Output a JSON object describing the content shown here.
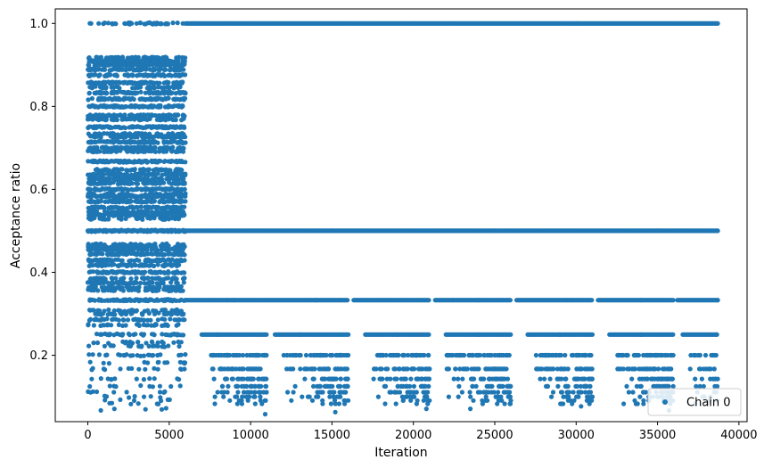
{
  "chart_data": {
    "type": "scatter",
    "title": "",
    "xlabel": "Iteration",
    "ylabel": "Acceptance ratio",
    "xlim": [
      -2000,
      40500
    ],
    "ylim": [
      0.04,
      1.035
    ],
    "xticks": [
      0,
      5000,
      10000,
      15000,
      20000,
      25000,
      30000,
      35000,
      40000
    ],
    "xtick_labels": [
      "0",
      "5000",
      "10000",
      "15000",
      "20000",
      "25000",
      "30000",
      "35000",
      "40000"
    ],
    "yticks": [
      0.2,
      0.4,
      0.6,
      0.8,
      1.0
    ],
    "ytick_labels": [
      "0.2",
      "0.4",
      "0.6",
      "0.8",
      "1.0"
    ],
    "grid": false,
    "legend": {
      "position": "bottom-right",
      "entries": [
        "Chain 0"
      ]
    },
    "series": [
      {
        "name": "Chain 0",
        "color": "#1f77b4",
        "marker": "circle",
        "x_range": [
          0,
          38700
        ],
        "description_levels": {
          "bands": [
            {
              "y": 1.0,
              "x_range": [
                6000,
                38700
              ],
              "continuous": true
            },
            {
              "y": 0.5,
              "x_range": [
                6000,
                38700
              ],
              "continuous": true
            },
            {
              "y": 0.333,
              "x_range": [
                6000,
                38700
              ],
              "gaps": [
                [
                  16000,
                  16300
                ],
                [
                  21000,
                  21300
                ],
                [
                  26000,
                  26300
                ],
                [
                  31000,
                  31300
                ],
                [
                  36000,
                  36200
                ]
              ]
            },
            {
              "y": 0.25,
              "x_range": [
                7000,
                38700
              ],
              "gaps": [
                [
                  11000,
                  11500
                ],
                [
                  16000,
                  17000
                ],
                [
                  21000,
                  22000
                ],
                [
                  26000,
                  27000
                ],
                [
                  31000,
                  32000
                ],
                [
                  36000,
                  36500
                ]
              ]
            }
          ],
          "early_phase_x_range": [
            0,
            6000
          ],
          "early_phase_y_range": [
            0.06,
            0.95
          ]
        },
        "sample_points": [
          [
            200,
            1.0
          ],
          [
            1500,
            1.0
          ],
          [
            3000,
            1.0
          ],
          [
            4500,
            1.0
          ],
          [
            6500,
            1.0
          ],
          [
            10000,
            1.0
          ],
          [
            20000,
            1.0
          ],
          [
            30000,
            1.0
          ],
          [
            38700,
            1.0
          ],
          [
            500,
            0.909
          ],
          [
            2500,
            0.9
          ],
          [
            4000,
            0.909
          ],
          [
            5800,
            0.917
          ],
          [
            300,
            0.857
          ],
          [
            1800,
            0.833
          ],
          [
            3200,
            0.8
          ],
          [
            5000,
            0.75
          ],
          [
            400,
            0.714
          ],
          [
            2000,
            0.667
          ],
          [
            3500,
            0.636
          ],
          [
            5500,
            0.6
          ],
          [
            600,
            0.571
          ],
          [
            2800,
            0.556
          ],
          [
            4200,
            0.545
          ],
          [
            5900,
            0.538
          ],
          [
            1000,
            0.5
          ],
          [
            8000,
            0.5
          ],
          [
            15000,
            0.5
          ],
          [
            25000,
            0.5
          ],
          [
            35000,
            0.5
          ],
          [
            38700,
            0.5
          ],
          [
            700,
            0.455
          ],
          [
            2200,
            0.444
          ],
          [
            3800,
            0.429
          ],
          [
            5200,
            0.417
          ],
          [
            900,
            0.4
          ],
          [
            2600,
            0.375
          ],
          [
            4400,
            0.364
          ],
          [
            5700,
            0.357
          ],
          [
            1200,
            0.333
          ],
          [
            9000,
            0.333
          ],
          [
            14000,
            0.333
          ],
          [
            24000,
            0.333
          ],
          [
            34000,
            0.333
          ],
          [
            38700,
            0.333
          ],
          [
            1500,
            0.3
          ],
          [
            3000,
            0.286
          ],
          [
            4800,
            0.273
          ],
          [
            800,
            0.25
          ],
          [
            8000,
            0.25
          ],
          [
            13000,
            0.25
          ],
          [
            19000,
            0.25
          ],
          [
            24000,
            0.25
          ],
          [
            29000,
            0.25
          ],
          [
            34000,
            0.25
          ],
          [
            38600,
            0.25
          ],
          [
            1100,
            0.2
          ],
          [
            4000,
            0.2
          ],
          [
            9000,
            0.2
          ],
          [
            15000,
            0.2
          ],
          [
            20000,
            0.2
          ],
          [
            25000,
            0.2
          ],
          [
            30000,
            0.2
          ],
          [
            35000,
            0.2
          ],
          [
            38600,
            0.2
          ],
          [
            2000,
            0.167
          ],
          [
            9500,
            0.167
          ],
          [
            14500,
            0.167
          ],
          [
            19500,
            0.167
          ],
          [
            24500,
            0.167
          ],
          [
            29500,
            0.167
          ],
          [
            34500,
            0.167
          ],
          [
            3000,
            0.143
          ],
          [
            10000,
            0.143
          ],
          [
            15000,
            0.143
          ],
          [
            25000,
            0.143
          ],
          [
            30000,
            0.143
          ],
          [
            35000,
            0.143
          ],
          [
            3800,
            0.125
          ],
          [
            10500,
            0.125
          ],
          [
            15500,
            0.125
          ],
          [
            25500,
            0.125
          ],
          [
            30500,
            0.125
          ],
          [
            35500,
            0.125
          ],
          [
            1600,
            0.111
          ],
          [
            10800,
            0.111
          ],
          [
            15800,
            0.111
          ],
          [
            25800,
            0.111
          ],
          [
            30800,
            0.111
          ],
          [
            35800,
            0.111
          ],
          [
            800,
            0.067
          ],
          [
            10900,
            0.058
          ],
          [
            15200,
            0.063
          ],
          [
            20800,
            0.071
          ],
          [
            23500,
            0.071
          ],
          [
            30300,
            0.077
          ],
          [
            35700,
            0.067
          ]
        ]
      }
    ]
  }
}
